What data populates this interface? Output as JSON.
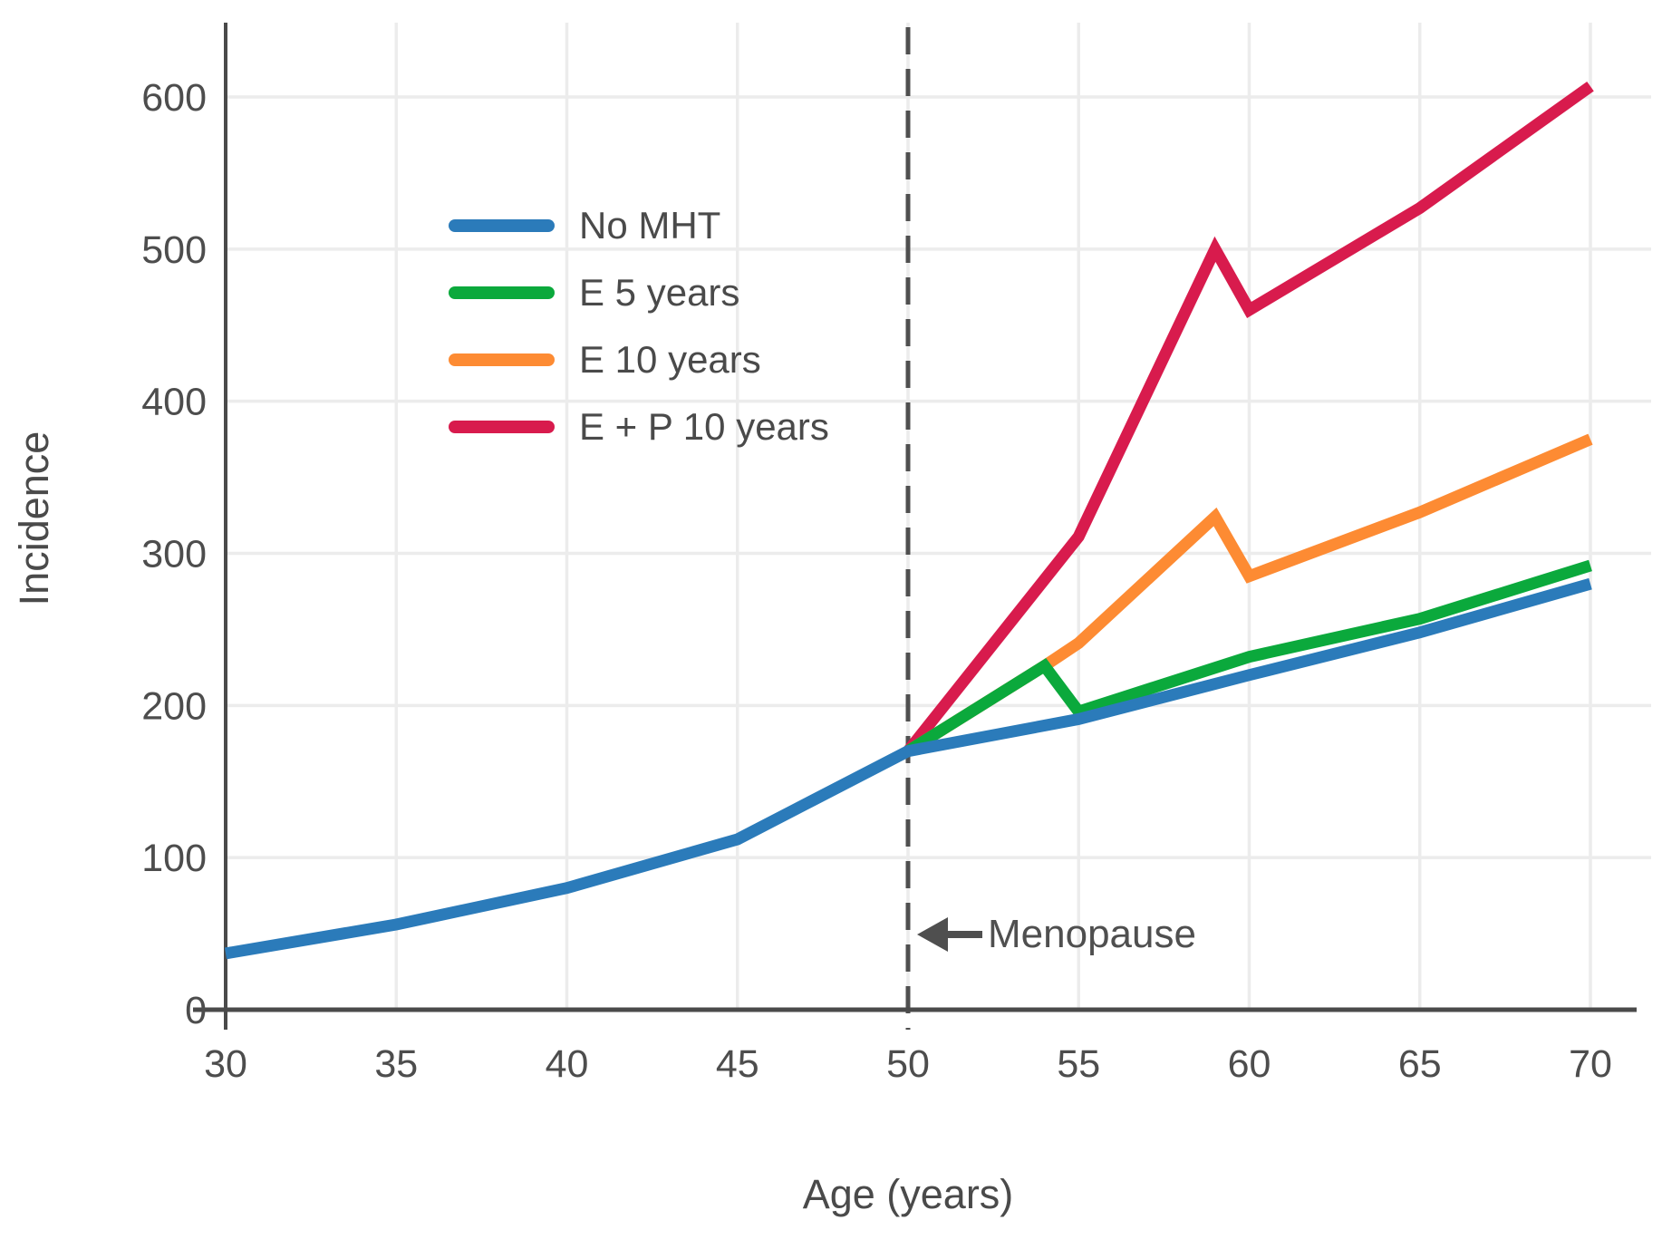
{
  "chart_data": {
    "type": "line",
    "title": "",
    "xlabel": "Age (years)",
    "ylabel": "Incidence",
    "xlim": [
      30,
      70
    ],
    "ylim": [
      0,
      650
    ],
    "xticks": [
      30,
      35,
      40,
      45,
      50,
      55,
      60,
      65,
      70
    ],
    "yticks": [
      0,
      100,
      200,
      300,
      400,
      500,
      600
    ],
    "grid": true,
    "legend_position": "upper-left-inside",
    "annotation": {
      "label": "Menopause",
      "x": 50,
      "arrow": "left"
    },
    "colors": {
      "grid": "#ececec",
      "spine": "#4a4a4a",
      "tick_label": "#4d4d4d",
      "dashed_line": "#4f4f4f",
      "arrow": "#4f4f4f"
    },
    "series": [
      {
        "name": "No MHT",
        "color": "#2b7bba",
        "points": [
          [
            30,
            37
          ],
          [
            35,
            56
          ],
          [
            40,
            80
          ],
          [
            45,
            112
          ],
          [
            50,
            170
          ],
          [
            55,
            191
          ],
          [
            60,
            220
          ],
          [
            65,
            248
          ],
          [
            70,
            280
          ]
        ]
      },
      {
        "name": "E 5 years",
        "color": "#0ba93c",
        "points": [
          [
            50,
            170
          ],
          [
            54,
            226
          ],
          [
            55,
            196
          ],
          [
            60,
            232
          ],
          [
            65,
            257
          ],
          [
            70,
            292
          ]
        ]
      },
      {
        "name": "E 10 years",
        "color": "#fd8b33",
        "points": [
          [
            50,
            170
          ],
          [
            54,
            226
          ],
          [
            55,
            241
          ],
          [
            59,
            324
          ],
          [
            60,
            285
          ],
          [
            65,
            327
          ],
          [
            70,
            375
          ]
        ]
      },
      {
        "name": "E + P 10 years",
        "color": "#d81b4d",
        "points": [
          [
            50,
            170
          ],
          [
            55,
            311
          ],
          [
            59,
            500
          ],
          [
            60,
            460
          ],
          [
            65,
            527
          ],
          [
            70,
            607
          ]
        ]
      }
    ]
  }
}
